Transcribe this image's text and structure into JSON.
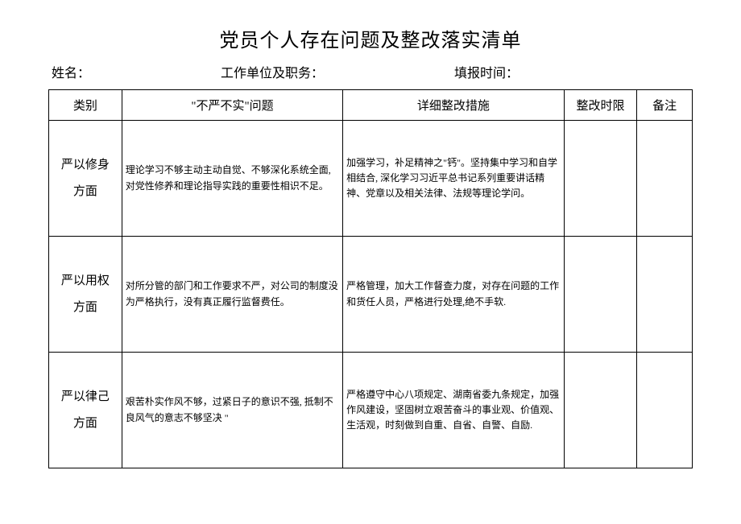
{
  "title": "党员个人存在问题及整改落实清单",
  "info": {
    "name_label": "姓名：",
    "work_label": "工作单位及职务：",
    "time_label": "填报时间："
  },
  "columns": {
    "category": "类别",
    "problem": "\"不严不实\"问题",
    "measure": "详细整改措施",
    "deadline": "整改时限",
    "note": "备注"
  },
  "rows": [
    {
      "category": "严以修身方面",
      "problem": "理论学习不够主动主动自觉、不够深化系统全面,对党性修养和理论指导实践的重要性相识不足。",
      "measure": "加强学习，补足精神之\"钙\"。坚持集中学习和自学相结合, 深化学习习近平总书记系列重要讲话精神、党章以及相关法律、法规等理论学问。",
      "deadline": "",
      "note": ""
    },
    {
      "category": "严以用权方面",
      "problem": "对所分管的部门和工作要求不严，对公司的制度没为严格执行，没有真正履行监督费任。",
      "measure": "严格管理，加大工作督查力度，对存在问题的工作和货任人员，严格进行处理,绝不手软.",
      "deadline": "",
      "note": ""
    },
    {
      "category": "严以律己方面",
      "problem": "艰苦朴实作风不够，过紧日子的意识不强, 抵制不良风气的意志不够坚决 \"",
      "measure": "严格遵守中心八项规定、湖南省委九条规定，加强作风建设，坚固树立艰苦奋斗的事业观、价值观、生活观，时刻做到自重、自省、自警、自励.",
      "deadline": "",
      "note": ""
    }
  ]
}
